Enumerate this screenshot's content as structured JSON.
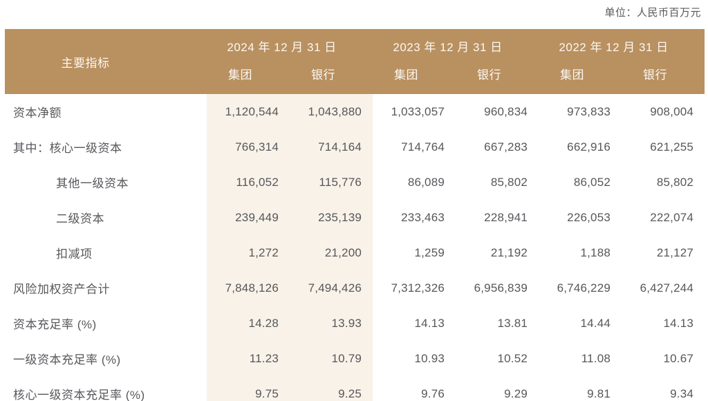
{
  "unit_note": "单位：人民币百万元",
  "colors": {
    "header_bg": "#B9905F",
    "header_text": "#FBF8F3",
    "highlight_band_bg": "#F8F2E8",
    "body_text": "#56575B",
    "bottom_border": "#B9905F"
  },
  "table": {
    "header": {
      "indicator_label": "主要指标",
      "period_groups": [
        {
          "date": "2024 年 12 月 31 日",
          "sub": [
            "集团",
            "银行"
          ]
        },
        {
          "date": "2023 年 12 月 31 日",
          "sub": [
            "集团",
            "银行"
          ]
        },
        {
          "date": "2022 年 12 月 31 日",
          "sub": [
            "集团",
            "银行"
          ]
        }
      ]
    },
    "rows": [
      {
        "label": "资本净额",
        "indent": false,
        "values": [
          "1,120,544",
          "1,043,880",
          "1,033,057",
          "960,834",
          "973,833",
          "908,004"
        ]
      },
      {
        "label": "其中：核心一级资本",
        "indent": false,
        "values": [
          "766,314",
          "714,164",
          "714,764",
          "667,283",
          "662,916",
          "621,255"
        ]
      },
      {
        "label": "其他一级资本",
        "indent": true,
        "values": [
          "116,052",
          "115,776",
          "86,089",
          "85,802",
          "86,052",
          "85,802"
        ]
      },
      {
        "label": "二级资本",
        "indent": true,
        "values": [
          "239,449",
          "235,139",
          "233,463",
          "228,941",
          "226,053",
          "222,074"
        ]
      },
      {
        "label": "扣减项",
        "indent": true,
        "values": [
          "1,272",
          "21,200",
          "1,259",
          "21,192",
          "1,188",
          "21,127"
        ]
      },
      {
        "label": "风险加权资产合计",
        "indent": false,
        "values": [
          "7,848,126",
          "7,494,426",
          "7,312,326",
          "6,956,839",
          "6,746,229",
          "6,427,244"
        ]
      },
      {
        "label": "资本充足率 (%)",
        "indent": false,
        "values": [
          "14.28",
          "13.93",
          "14.13",
          "13.81",
          "14.44",
          "14.13"
        ]
      },
      {
        "label": "一级资本充足率 (%)",
        "indent": false,
        "values": [
          "11.23",
          "10.79",
          "10.93",
          "10.52",
          "11.08",
          "10.67"
        ]
      },
      {
        "label": "核心一级资本充足率 (%)",
        "indent": false,
        "values": [
          "9.75",
          "9.25",
          "9.76",
          "9.29",
          "9.81",
          "9.34"
        ]
      }
    ]
  }
}
